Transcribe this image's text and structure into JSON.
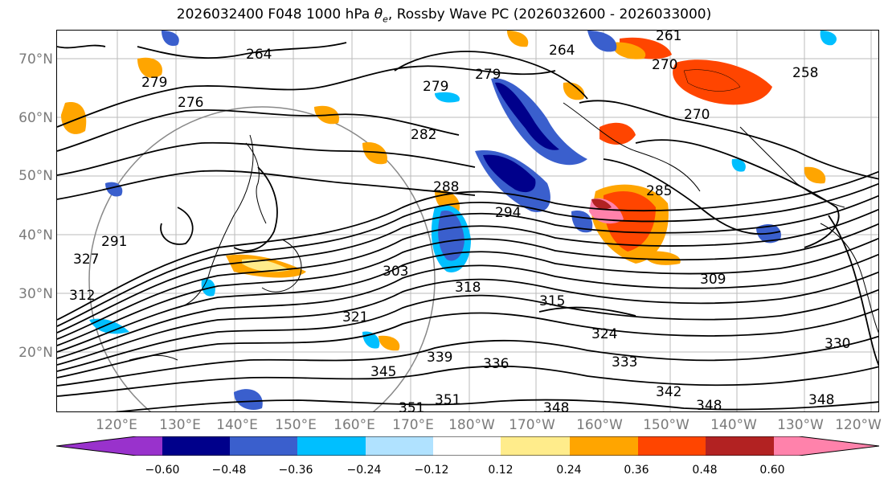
{
  "title": {
    "prefix": "2026032400 F048 1000 hPa ",
    "theta_symbol": "θ",
    "theta_sub": "e",
    "suffix": ", Rossby Wave PC (2026032600 - 2026033000)"
  },
  "map": {
    "lat_labels": [
      "70°N",
      "60°N",
      "50°N",
      "40°N",
      "30°N",
      "20°N"
    ],
    "lon_labels": [
      "120°E",
      "130°E",
      "140°E",
      "150°E",
      "160°E",
      "170°E",
      "180°W",
      "170°W",
      "160°W",
      "150°W",
      "140°W",
      "130°W",
      "120°W"
    ],
    "contour_labels": [
      "261",
      "264",
      "264",
      "270",
      "279",
      "279",
      "276",
      "282",
      "285",
      "288",
      "294",
      "279",
      "258",
      "270",
      "309",
      "318",
      "315",
      "312",
      "321",
      "324",
      "327",
      "330",
      "333",
      "336",
      "339",
      "342",
      "345",
      "348",
      "348",
      "348",
      "351",
      "351",
      "291",
      "303"
    ],
    "colors": {
      "coast": "#000000",
      "contour": "#000000",
      "grid": "#bbbbbb",
      "circle": "#888888"
    }
  },
  "colorbar": {
    "ticks": [
      "−0.60",
      "−0.48",
      "−0.36",
      "−0.24",
      "−0.12",
      "0.12",
      "0.24",
      "0.36",
      "0.48",
      "0.60"
    ],
    "colors": [
      "#9932cc",
      "#00008b",
      "#3a5fcd",
      "#00bfff",
      "#b0e2ff",
      "#ffffff",
      "#ffec8b",
      "#ffa500",
      "#ff4500",
      "#b22222",
      "#ff82ab"
    ]
  }
}
